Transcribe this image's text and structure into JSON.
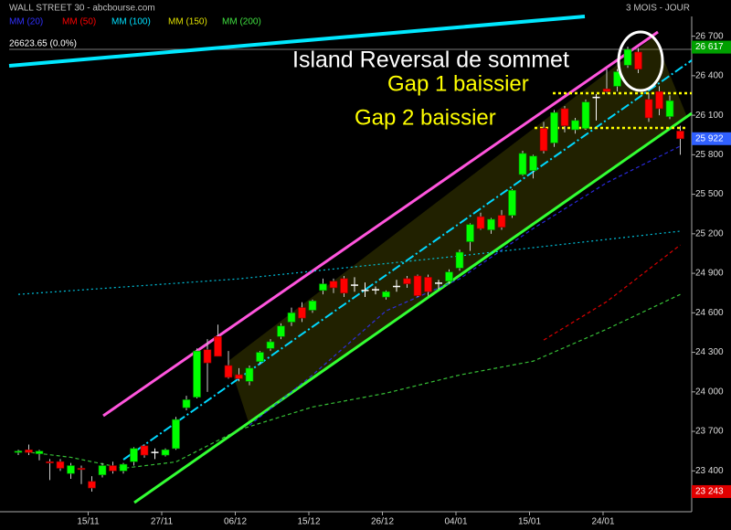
{
  "chart_data": {
    "type": "candlestick",
    "title": "WALL STREET 30 - abcbourse.com",
    "period": "3 MOIS - JOUR",
    "last_quote": "26623.65  (0.0%)",
    "categories": [
      null,
      null,
      null,
      null,
      null,
      null,
      null,
      "15/11",
      null,
      null,
      null,
      null,
      null,
      null,
      "27/11",
      null,
      null,
      null,
      null,
      null,
      null,
      "06/12",
      null,
      null,
      null,
      null,
      null,
      null,
      "15/12",
      null,
      null,
      null,
      null,
      null,
      null,
      "26/12",
      null,
      null,
      null,
      null,
      null,
      null,
      "04/01",
      null,
      null,
      null,
      null,
      null,
      null,
      "15/01",
      null,
      null,
      null,
      null,
      null,
      null,
      "24/01",
      null,
      null,
      null,
      null,
      null,
      null,
      null
    ],
    "open": [
      23540,
      23560,
      23530,
      23470,
      23470,
      23380,
      23420,
      23320,
      23370,
      23440,
      23400,
      23470,
      23590,
      23540,
      23520,
      23570,
      23880,
      23960,
      24320,
      24420,
      24200,
      24130,
      24080,
      24230,
      24330,
      24420,
      24530,
      24640,
      24620,
      24770,
      24840,
      24860,
      24810,
      24770,
      24775,
      24720,
      24800,
      24860,
      24880,
      24870,
      24825,
      24840,
      24940,
      25140,
      25330,
      25230,
      25340,
      25340,
      25650,
      25680,
      26000,
      25890,
      26150,
      25990,
      26000,
      26235,
      26300,
      26320,
      26480,
      26580,
      26220,
      26280,
      26090,
      25980
    ],
    "high": [
      23560,
      23600,
      23560,
      23490,
      23490,
      23460,
      23440,
      23360,
      23460,
      23470,
      23460,
      23580,
      23600,
      23570,
      23570,
      23810,
      23970,
      24330,
      24400,
      24510,
      24310,
      24180,
      24200,
      24310,
      24400,
      24520,
      24640,
      24680,
      24700,
      24860,
      24860,
      24880,
      24870,
      24830,
      24800,
      24770,
      24850,
      24880,
      24890,
      24890,
      24850,
      24930,
      25080,
      25280,
      25360,
      25320,
      25380,
      25540,
      25830,
      25800,
      26050,
      26140,
      26170,
      26080,
      26220,
      26260,
      26450,
      26450,
      26620,
      26610,
      26270,
      26320,
      26250,
      26020
    ],
    "low": [
      23520,
      23520,
      23480,
      23330,
      23400,
      23340,
      23300,
      23243,
      23350,
      23380,
      23380,
      23440,
      23500,
      23490,
      23510,
      23560,
      23860,
      23950,
      24000,
      24270,
      24100,
      24080,
      24050,
      24210,
      24310,
      24400,
      24500,
      24530,
      24600,
      24740,
      24750,
      24720,
      24760,
      24720,
      24740,
      24700,
      24760,
      24790,
      24720,
      24730,
      24780,
      24820,
      24920,
      25070,
      25230,
      25200,
      25230,
      25320,
      25640,
      25620,
      25810,
      25860,
      25970,
      25960,
      25990,
      26060,
      26270,
      26280,
      26460,
      26420,
      26050,
      26100,
      26070,
      25800
    ],
    "close": [
      23550,
      23540,
      23550,
      23460,
      23420,
      23440,
      23410,
      23270,
      23440,
      23400,
      23450,
      23570,
      23520,
      23540,
      23560,
      23790,
      23940,
      24310,
      24220,
      24270,
      24110,
      24100,
      24180,
      24300,
      24380,
      24500,
      24600,
      24560,
      24690,
      24820,
      24790,
      24750,
      24810,
      24770,
      24775,
      24760,
      24800,
      24820,
      24730,
      24760,
      24825,
      24910,
      25060,
      25270,
      25240,
      25310,
      25250,
      25530,
      25810,
      25790,
      25830,
      26120,
      26020,
      26060,
      26200,
      26235,
      26280,
      26430,
      26600,
      26450,
      26080,
      26150,
      26210,
      25922
    ],
    "series": [
      {
        "name": "MM (20)",
        "color": "#3030ff",
        "x": [
          22,
          28,
          35,
          42,
          49,
          56,
          63
        ],
        "values": [
          23746,
          24128,
          24615,
          24858,
          25240,
          25588,
          25866
        ]
      },
      {
        "name": "MM (50)",
        "color": "#ff0000",
        "x": [
          50,
          56,
          63
        ],
        "values": [
          24393,
          24685,
          25115
        ]
      },
      {
        "name": "MM (100)",
        "color": "#00e0ff",
        "x": [
          0,
          21,
          42,
          63
        ],
        "values": [
          24740,
          24858,
          25032,
          25220
        ]
      },
      {
        "name": "MM (150)",
        "color": "#e0e000",
        "x": [],
        "values": []
      },
      {
        "name": "MM (200)",
        "color": "#40e040",
        "x": [
          0,
          5,
          10,
          15,
          21,
          28,
          35,
          42,
          49,
          56,
          63
        ],
        "values": [
          23552,
          23503,
          23420,
          23468,
          23712,
          23885,
          23990,
          24128,
          24233,
          24476,
          24740
        ]
      }
    ],
    "ylim": [
      23090,
      26850
    ],
    "yticks": [
      {
        "value": 23400,
        "label": "23 400"
      },
      {
        "value": 23700,
        "label": "23 700"
      },
      {
        "value": 24000,
        "label": "24 000"
      },
      {
        "value": 24300,
        "label": "24 300"
      },
      {
        "value": 24600,
        "label": "24 600"
      },
      {
        "value": 24900,
        "label": "24 900"
      },
      {
        "value": 25200,
        "label": "25 200"
      },
      {
        "value": 25500,
        "label": "25 500"
      },
      {
        "value": 25800,
        "label": "25 800"
      },
      {
        "value": 26100,
        "label": "26 100"
      },
      {
        "value": 26400,
        "label": "26 400"
      },
      {
        "value": 26700,
        "label": "26 700"
      }
    ],
    "price_labels": [
      {
        "value": 26617,
        "label": "26 617",
        "color": "#00a000"
      },
      {
        "value": 25922,
        "label": "25 922",
        "color": "#3060ff"
      },
      {
        "value": 23243,
        "label": "23 243",
        "color": "#e00000"
      }
    ],
    "annotations": [
      "Island Reversal de sommet",
      "Gap 1 baissier",
      "Gap 2 baissier"
    ],
    "up_color": "#00ff00",
    "down_color": "#ff0000",
    "doji_color": "#ffffff"
  }
}
